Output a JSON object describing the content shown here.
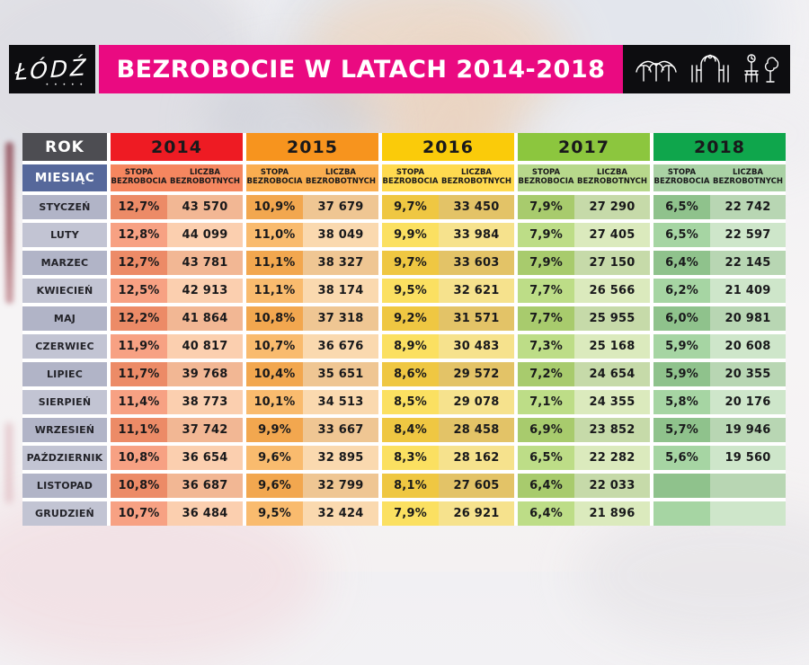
{
  "header": {
    "logo_text": "ŁÓDŹ",
    "logo_dots": "• • • • •",
    "title": "BEZROBOCIE W LATACH 2014-2018",
    "banner_color": "#EA0A81",
    "icons": [
      "station-canopy-icon",
      "gate-arch-icon",
      "park-clock-tree-bench-icon"
    ]
  },
  "chart_data": {
    "type": "table",
    "title": "BEZROBOCIE W LATACH 2014-2018",
    "corner_label": "ROK",
    "row_label": "MIESIĄC",
    "metric_labels": [
      "STOPA BEZROBOCIA",
      "LICZBA BEZROBOTNYCH"
    ],
    "months": [
      "STYCZEŃ",
      "LUTY",
      "MARZEC",
      "KWIECIEŃ",
      "MAJ",
      "CZERWIEC",
      "LIPIEC",
      "SIERPIEŃ",
      "WRZESIEŃ",
      "PAŹDZIERNIK",
      "LISTOPAD",
      "GRUDZIEŃ"
    ],
    "years": [
      {
        "label": "2014",
        "color": "#EE1B23",
        "stopa": [
          "12,7%",
          "12,8%",
          "12,7%",
          "12,5%",
          "12,2%",
          "11,9%",
          "11,7%",
          "11,4%",
          "11,1%",
          "10,8%",
          "10,8%",
          "10,7%"
        ],
        "liczba": [
          "43 570",
          "44 099",
          "43 781",
          "42 913",
          "41 864",
          "40 817",
          "39 768",
          "38 773",
          "37 742",
          "36 654",
          "36 687",
          "36 484"
        ]
      },
      {
        "label": "2015",
        "color": "#F7941E",
        "stopa": [
          "10,9%",
          "11,0%",
          "11,1%",
          "11,1%",
          "10,8%",
          "10,7%",
          "10,4%",
          "10,1%",
          "9,9%",
          "9,6%",
          "9,6%",
          "9,5%"
        ],
        "liczba": [
          "37 679",
          "38 049",
          "38 327",
          "38 174",
          "37 318",
          "36 676",
          "35 651",
          "34 513",
          "33 667",
          "32 895",
          "32 799",
          "32 424"
        ]
      },
      {
        "label": "2016",
        "color": "#FACB0A",
        "stopa": [
          "9,7%",
          "9,9%",
          "9,7%",
          "9,5%",
          "9,2%",
          "8,9%",
          "8,6%",
          "8,5%",
          "8,4%",
          "8,3%",
          "8,1%",
          "7,9%"
        ],
        "liczba": [
          "33 450",
          "33 984",
          "33 603",
          "32 621",
          "31 571",
          "30 483",
          "29 572",
          "29 078",
          "28 458",
          "28 162",
          "27 605",
          "26 921"
        ]
      },
      {
        "label": "2017",
        "color": "#8CC63E",
        "stopa": [
          "7,9%",
          "7,9%",
          "7,9%",
          "7,7%",
          "7,7%",
          "7,3%",
          "7,2%",
          "7,1%",
          "6,9%",
          "6,5%",
          "6,4%",
          "6,4%"
        ],
        "liczba": [
          "27 290",
          "27 405",
          "27 150",
          "26 566",
          "25 955",
          "25 168",
          "24 654",
          "24 355",
          "23 852",
          "22 282",
          "22 033",
          "21 896"
        ]
      },
      {
        "label": "2018",
        "color": "#0FA64C",
        "stopa": [
          "6,5%",
          "6,5%",
          "6,4%",
          "6,2%",
          "6,0%",
          "5,9%",
          "5,9%",
          "5,8%",
          "5,7%",
          "5,6%",
          "",
          ""
        ],
        "liczba": [
          "22 742",
          "22 597",
          "22 145",
          "21 409",
          "20 981",
          "20 608",
          "20 355",
          "20 176",
          "19 946",
          "19 560",
          "",
          ""
        ]
      }
    ]
  }
}
